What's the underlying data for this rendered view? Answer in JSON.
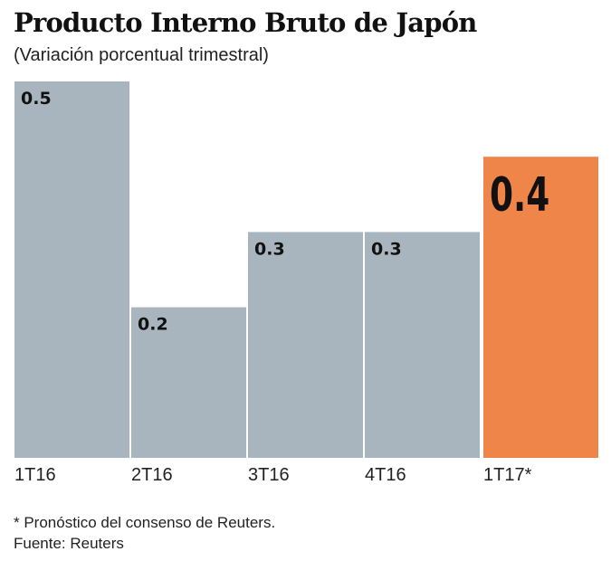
{
  "chart_data": {
    "type": "bar",
    "title": "Producto Interno Bruto de Japón",
    "subtitle": "(Variación porcentual trimestral)",
    "categories": [
      "1T16",
      "2T16",
      "3T16",
      "4T16",
      "1T17*"
    ],
    "values": [
      0.5,
      0.2,
      0.3,
      0.3,
      0.4
    ],
    "value_labels": [
      "0.5",
      "0.2",
      "0.3",
      "0.3",
      "0.4"
    ],
    "highlight_index": 4,
    "ylim": [
      0,
      0.5
    ],
    "grid": false,
    "colors": {
      "bar": "#a8b5bf",
      "highlight": "#f0854a"
    }
  },
  "notes": {
    "footnote": "* Pronóstico del consenso de Reuters.",
    "source": "Fuente: Reuters"
  }
}
